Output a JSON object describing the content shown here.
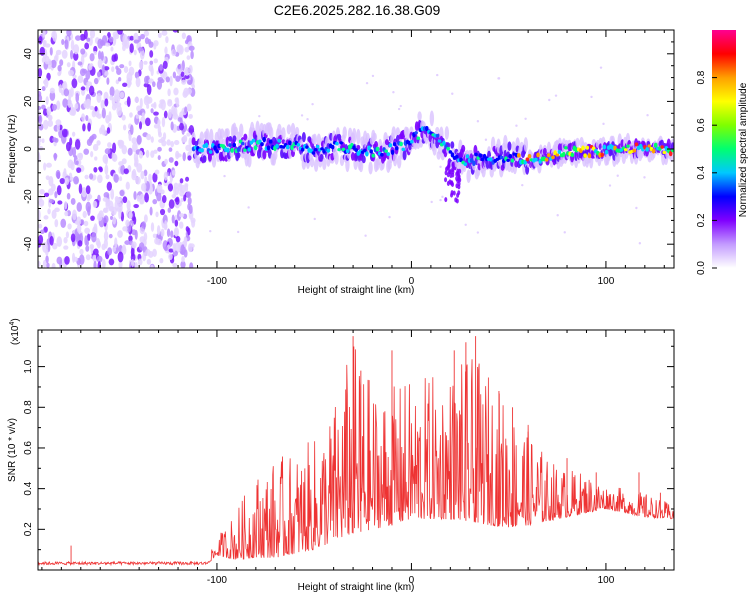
{
  "title": "C2E6.2025.282.16.38.G09",
  "chart_data": [
    {
      "type": "heatmap",
      "name": "spectrogram",
      "title": "C2E6.2025.282.16.38.G09",
      "xlabel": "Height of straight line (km)",
      "ylabel": "Frequency (Hz)",
      "xlim": [
        -192,
        135
      ],
      "ylim": [
        -50,
        50
      ],
      "xticks": [
        -100,
        0,
        100
      ],
      "xtick_labels": [
        "-100",
        "0",
        "100"
      ],
      "yticks": [
        -40,
        -20,
        0,
        20,
        40
      ],
      "ytick_labels": [
        "-40",
        "-20",
        "0",
        "20",
        "40"
      ],
      "noise_region_x": [
        -192,
        -112
      ],
      "signal_region_x": [
        -112,
        135
      ],
      "ridge": {
        "x": [
          -112,
          -100,
          -90,
          -80,
          -70,
          -60,
          -50,
          -40,
          -30,
          -20,
          -10,
          0,
          5,
          10,
          15,
          20,
          25,
          30,
          35,
          40,
          45,
          50,
          55,
          60,
          65,
          70,
          80,
          90,
          100,
          110,
          120,
          135
        ],
        "y": [
          0,
          0,
          1,
          2,
          2,
          1,
          0,
          1,
          0,
          -1,
          0,
          3,
          8,
          6,
          3,
          -2,
          -4,
          -5,
          -3,
          -3,
          -5,
          -3,
          -4,
          -5,
          -4,
          -3,
          -1,
          -1,
          -1,
          0,
          0,
          0
        ]
      },
      "colorbar": {
        "label": "Normalized spectral amplitude",
        "range": [
          0,
          1
        ],
        "ticks": [
          0.0,
          0.2,
          0.4,
          0.6,
          0.8
        ],
        "tick_labels": [
          "0.0",
          "0.2",
          "0.4",
          "0.6",
          "0.8"
        ],
        "colors": [
          "#ffffff",
          "#c39bff",
          "#8000ff",
          "#0000ff",
          "#00c8ff",
          "#00ff70",
          "#7fff00",
          "#ffff00",
          "#ffa000",
          "#ff0000",
          "#ff0090"
        ]
      }
    },
    {
      "type": "line",
      "name": "snr",
      "xlabel": "Height of straight line (km)",
      "ylabel": "SNR (10 * v/v)",
      "multiplier": "(x10",
      "multiplier_exp": "4",
      "multiplier_close": ")",
      "xlim": [
        -192,
        135
      ],
      "ylim": [
        0,
        1.18
      ],
      "xticks": [
        -100,
        0,
        100
      ],
      "xtick_labels": [
        "-100",
        "0",
        "100"
      ],
      "yticks": [
        0.2,
        0.4,
        0.6,
        0.8,
        1.0
      ],
      "ytick_labels": [
        "0.2",
        "0.4",
        "0.6",
        "0.8",
        "1.0"
      ],
      "color": "#ee3333",
      "envelope": {
        "x": [
          -192,
          -170,
          -150,
          -130,
          -105,
          -100,
          -90,
          -80,
          -70,
          -60,
          -50,
          -40,
          -30,
          -20,
          -10,
          0,
          10,
          20,
          30,
          40,
          50,
          60,
          70,
          80,
          90,
          100,
          110,
          120,
          135
        ],
        "base": [
          0.03,
          0.03,
          0.03,
          0.03,
          0.03,
          0.07,
          0.05,
          0.06,
          0.06,
          0.08,
          0.1,
          0.14,
          0.18,
          0.2,
          0.22,
          0.25,
          0.25,
          0.25,
          0.24,
          0.22,
          0.21,
          0.22,
          0.24,
          0.26,
          0.28,
          0.3,
          0.28,
          0.26,
          0.25
        ],
        "peak": [
          0.05,
          0.07,
          0.05,
          0.05,
          0.05,
          0.16,
          0.3,
          0.48,
          0.55,
          0.58,
          0.65,
          0.82,
          1.15,
          0.92,
          0.9,
          0.95,
          0.96,
          1.0,
          1.05,
          0.98,
          0.82,
          0.72,
          0.55,
          0.5,
          0.48,
          0.42,
          0.4,
          0.38,
          0.32
        ]
      },
      "spikes": [
        {
          "x": -175,
          "y": 0.12
        },
        {
          "x": -30,
          "y": 1.15
        },
        {
          "x": -26,
          "y": 0.98
        },
        {
          "x": -10,
          "y": 1.08
        },
        {
          "x": 22,
          "y": 1.08
        },
        {
          "x": 28,
          "y": 1.12
        },
        {
          "x": 33,
          "y": 1.15
        },
        {
          "x": 45,
          "y": 0.88
        },
        {
          "x": 52,
          "y": 0.8
        },
        {
          "x": 60,
          "y": 0.68
        },
        {
          "x": 80,
          "y": 0.55
        },
        {
          "x": 95,
          "y": 0.48
        },
        {
          "x": 117,
          "y": 0.48
        },
        {
          "x": 128,
          "y": 0.38
        }
      ]
    }
  ]
}
